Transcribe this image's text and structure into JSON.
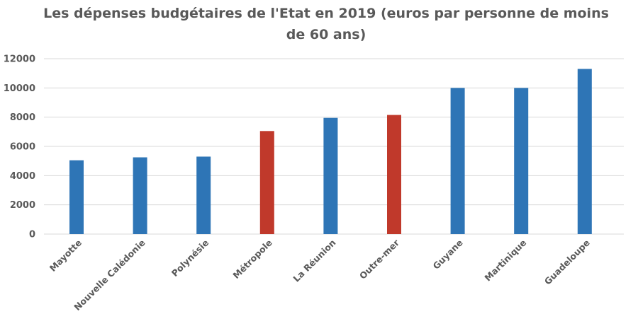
{
  "chart_data": {
    "type": "bar",
    "title": "Les dépenses budgétaires de l'Etat en 2019 (euros par personne de moins de 60 ans)",
    "xlabel": "",
    "ylabel": "",
    "categories": [
      "Mayotte",
      "Nouvelle Calédonie",
      "Polynésie",
      "Métropole",
      "La Réunion",
      "Outre-mer",
      "Guyane",
      "Martinique",
      "Guadeloupe"
    ],
    "values": [
      5050,
      5250,
      5300,
      7050,
      7950,
      8150,
      10000,
      10000,
      11300
    ],
    "bar_colors": [
      "#2E75B6",
      "#2E75B6",
      "#2E75B6",
      "#C0392B",
      "#2E75B6",
      "#C0392B",
      "#2E75B6",
      "#2E75B6",
      "#2E75B6"
    ],
    "yticks": [
      "0",
      "2000",
      "4000",
      "6000",
      "8000",
      "10000",
      "12000"
    ],
    "ylim": [
      0,
      12000
    ],
    "grid": true,
    "legend": "none"
  },
  "colors": {
    "primary_bar": "#2E75B6",
    "highlight_bar": "#C0392B",
    "gridline": "#D9D9D9",
    "text": "#595959"
  }
}
